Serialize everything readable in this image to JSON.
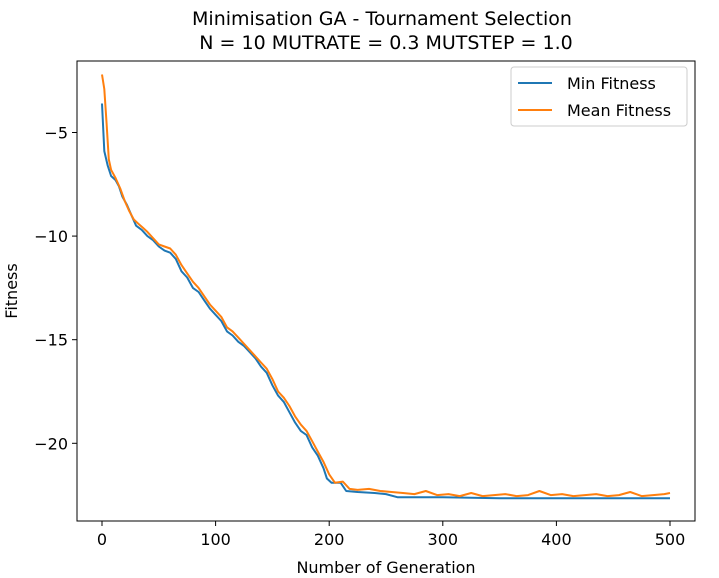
{
  "chart_data": {
    "type": "line",
    "title": "Minimisation GA - Tournament Selection",
    "subtitle": "N = 10 MUTRATE = 0.3 MUTSTEP = 1.0",
    "xlabel": "Number of Generation",
    "ylabel": "Fitness",
    "xlim": [
      -22,
      522
    ],
    "ylim": [
      -23.75,
      -1.55
    ],
    "xticks": [
      0,
      100,
      200,
      300,
      400,
      500
    ],
    "yticks": [
      -5,
      -10,
      -15,
      -20
    ],
    "xtick_labels": [
      "0",
      "100",
      "200",
      "300",
      "400",
      "500"
    ],
    "ytick_labels": [
      "−5",
      "−10",
      "−15",
      "−20"
    ],
    "grid": false,
    "legend_position": "top-right",
    "series": [
      {
        "name": "Min Fitness",
        "color": "#1f77b4",
        "points": [
          [
            0,
            -3.6
          ],
          [
            2,
            -5.9
          ],
          [
            5,
            -6.6
          ],
          [
            8,
            -7.1
          ],
          [
            12,
            -7.3
          ],
          [
            15,
            -7.6
          ],
          [
            18,
            -8.1
          ],
          [
            22,
            -8.5
          ],
          [
            26,
            -9.0
          ],
          [
            30,
            -9.5
          ],
          [
            35,
            -9.7
          ],
          [
            40,
            -10.0
          ],
          [
            45,
            -10.2
          ],
          [
            50,
            -10.5
          ],
          [
            55,
            -10.7
          ],
          [
            60,
            -10.8
          ],
          [
            65,
            -11.1
          ],
          [
            70,
            -11.7
          ],
          [
            75,
            -12.0
          ],
          [
            80,
            -12.5
          ],
          [
            85,
            -12.7
          ],
          [
            90,
            -13.1
          ],
          [
            95,
            -13.5
          ],
          [
            100,
            -13.8
          ],
          [
            105,
            -14.1
          ],
          [
            110,
            -14.6
          ],
          [
            115,
            -14.8
          ],
          [
            120,
            -15.1
          ],
          [
            125,
            -15.3
          ],
          [
            130,
            -15.6
          ],
          [
            135,
            -15.9
          ],
          [
            140,
            -16.3
          ],
          [
            145,
            -16.6
          ],
          [
            150,
            -17.2
          ],
          [
            155,
            -17.7
          ],
          [
            160,
            -18.0
          ],
          [
            165,
            -18.5
          ],
          [
            170,
            -19.0
          ],
          [
            175,
            -19.4
          ],
          [
            180,
            -19.6
          ],
          [
            185,
            -20.2
          ],
          [
            190,
            -20.6
          ],
          [
            195,
            -21.2
          ],
          [
            198,
            -21.7
          ],
          [
            202,
            -21.9
          ],
          [
            210,
            -21.9
          ],
          [
            215,
            -22.3
          ],
          [
            225,
            -22.35
          ],
          [
            240,
            -22.4
          ],
          [
            250,
            -22.45
          ],
          [
            260,
            -22.6
          ],
          [
            300,
            -22.6
          ],
          [
            350,
            -22.65
          ],
          [
            400,
            -22.65
          ],
          [
            450,
            -22.65
          ],
          [
            500,
            -22.65
          ]
        ]
      },
      {
        "name": "Mean Fitness",
        "color": "#ff7f0e",
        "points": [
          [
            0,
            -2.2
          ],
          [
            2,
            -2.9
          ],
          [
            4,
            -4.5
          ],
          [
            6,
            -6.3
          ],
          [
            8,
            -6.8
          ],
          [
            12,
            -7.2
          ],
          [
            16,
            -7.7
          ],
          [
            20,
            -8.3
          ],
          [
            24,
            -8.8
          ],
          [
            28,
            -9.2
          ],
          [
            32,
            -9.4
          ],
          [
            36,
            -9.6
          ],
          [
            40,
            -9.8
          ],
          [
            45,
            -10.1
          ],
          [
            50,
            -10.4
          ],
          [
            55,
            -10.5
          ],
          [
            60,
            -10.6
          ],
          [
            65,
            -10.9
          ],
          [
            70,
            -11.4
          ],
          [
            75,
            -11.8
          ],
          [
            80,
            -12.2
          ],
          [
            85,
            -12.5
          ],
          [
            90,
            -12.9
          ],
          [
            95,
            -13.3
          ],
          [
            100,
            -13.6
          ],
          [
            105,
            -13.9
          ],
          [
            110,
            -14.4
          ],
          [
            115,
            -14.6
          ],
          [
            120,
            -14.9
          ],
          [
            125,
            -15.2
          ],
          [
            130,
            -15.5
          ],
          [
            135,
            -15.8
          ],
          [
            140,
            -16.1
          ],
          [
            145,
            -16.4
          ],
          [
            150,
            -16.9
          ],
          [
            155,
            -17.5
          ],
          [
            160,
            -17.8
          ],
          [
            165,
            -18.2
          ],
          [
            170,
            -18.7
          ],
          [
            175,
            -19.1
          ],
          [
            180,
            -19.4
          ],
          [
            185,
            -19.9
          ],
          [
            190,
            -20.4
          ],
          [
            195,
            -20.9
          ],
          [
            200,
            -21.5
          ],
          [
            205,
            -21.9
          ],
          [
            212,
            -21.85
          ],
          [
            218,
            -22.2
          ],
          [
            225,
            -22.25
          ],
          [
            235,
            -22.2
          ],
          [
            245,
            -22.3
          ],
          [
            255,
            -22.35
          ],
          [
            265,
            -22.4
          ],
          [
            275,
            -22.45
          ],
          [
            285,
            -22.3
          ],
          [
            295,
            -22.5
          ],
          [
            305,
            -22.45
          ],
          [
            315,
            -22.55
          ],
          [
            325,
            -22.4
          ],
          [
            335,
            -22.55
          ],
          [
            345,
            -22.5
          ],
          [
            355,
            -22.45
          ],
          [
            365,
            -22.55
          ],
          [
            375,
            -22.5
          ],
          [
            385,
            -22.3
          ],
          [
            395,
            -22.5
          ],
          [
            405,
            -22.45
          ],
          [
            415,
            -22.55
          ],
          [
            425,
            -22.5
          ],
          [
            435,
            -22.45
          ],
          [
            445,
            -22.55
          ],
          [
            455,
            -22.5
          ],
          [
            465,
            -22.35
          ],
          [
            475,
            -22.55
          ],
          [
            485,
            -22.5
          ],
          [
            495,
            -22.45
          ],
          [
            500,
            -22.4
          ]
        ]
      }
    ]
  }
}
